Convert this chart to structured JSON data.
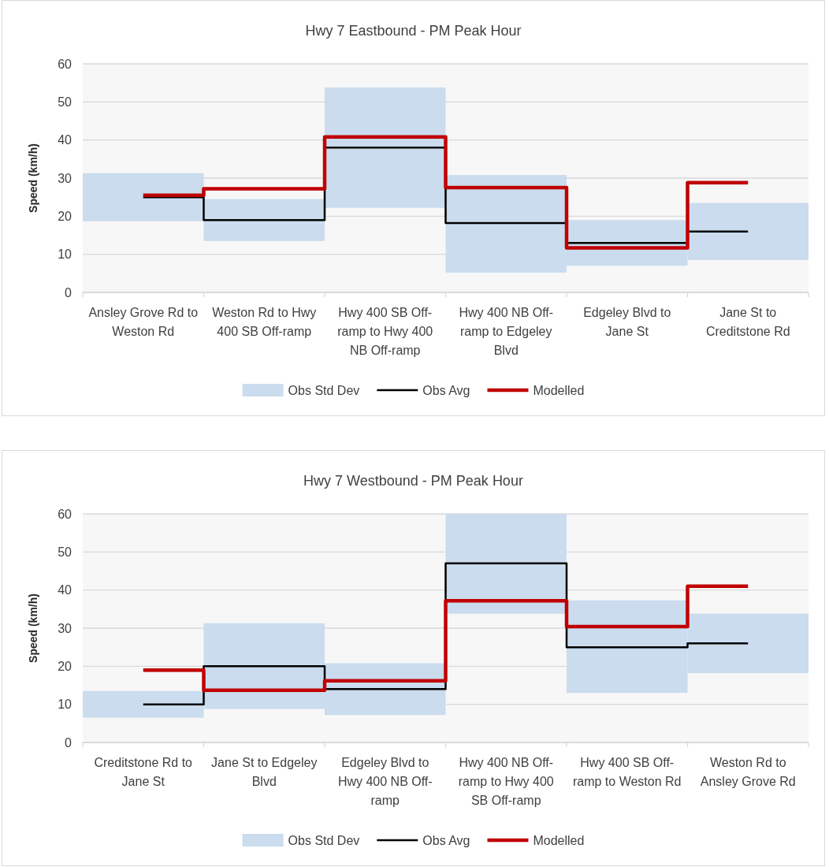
{
  "chart_data": [
    {
      "type": "bar",
      "title": "Hwy 7 Eastbound - PM Peak Hour",
      "ylabel": "Speed (km/h)",
      "categories": [
        "Ansley Grove Rd to Weston Rd",
        "Weston Rd to Hwy 400 SB Off-ramp",
        "Hwy 400 SB Off-ramp to Hwy 400 NB Off-ramp",
        "Hwy 400 NB Off-ramp to Edgeley Blvd",
        "Edgeley Blvd to Jane St",
        "Jane St to Creditstone Rd"
      ],
      "series": [
        {
          "name": "Obs Std Dev",
          "color": "#cadcee",
          "base": [
            18.7,
            13.5,
            22.2,
            5.2,
            7,
            8.5
          ],
          "values": [
            12.6,
            11,
            31.6,
            25.6,
            12,
            15
          ]
        },
        {
          "name": "Obs Avg",
          "type": "step",
          "color": "#000000",
          "values": [
            25,
            19,
            38,
            18.2,
            13,
            16
          ]
        },
        {
          "name": "Modelled",
          "type": "step",
          "color": "#c00000",
          "values": [
            25.5,
            27.2,
            40.8,
            27.5,
            11.7,
            28.8
          ]
        }
      ],
      "ylim": [
        0,
        60
      ],
      "yticks": [
        0,
        10,
        20,
        30,
        40,
        50,
        60
      ],
      "grid": "y",
      "legend": "bottom"
    },
    {
      "type": "bar",
      "title": "Hwy 7 Westbound - PM Peak Hour",
      "ylabel": "Speed (km/h)",
      "categories": [
        "Creditstone Rd to Jane St",
        "Jane St to Edgeley Blvd",
        "Edgeley Blvd to Hwy 400 NB Off-ramp",
        "Hwy 400 NB Off-ramp to Hwy 400 SB Off-ramp",
        "Hwy 400 SB Off-ramp to Weston Rd",
        "Weston Rd to Ansley Grove Rd"
      ],
      "series": [
        {
          "name": "Obs Std Dev",
          "color": "#cadcee",
          "base": [
            6.5,
            8.8,
            7.2,
            33.8,
            13,
            18.2
          ],
          "values": [
            7,
            22.5,
            13.6,
            26.2,
            24.3,
            15.6
          ]
        },
        {
          "name": "Obs Avg",
          "type": "step",
          "color": "#000000",
          "values": [
            10,
            20,
            14,
            47,
            25,
            26
          ]
        },
        {
          "name": "Modelled",
          "type": "step",
          "color": "#c00000",
          "values": [
            19,
            13.7,
            16.2,
            37.2,
            30.4,
            41
          ]
        }
      ],
      "ylim": [
        0,
        60
      ],
      "yticks": [
        0,
        10,
        20,
        30,
        40,
        50,
        60
      ],
      "grid": "y",
      "legend": "bottom"
    }
  ]
}
